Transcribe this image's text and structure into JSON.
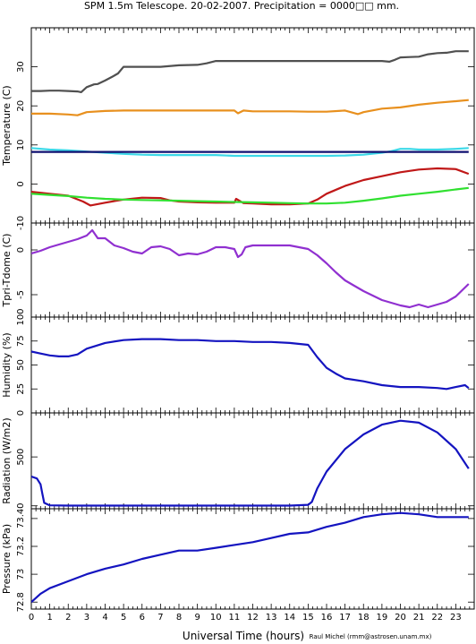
{
  "title": "SPM 1.5m Telescope. 20-02-2007. Precipitation = 0000□□ mm.",
  "credit": "Raul Michel (rmm@astrosen.unam.mx)",
  "colors": {
    "grey": "#505050",
    "orange": "#e8901e",
    "cyan": "#3cd8e8",
    "navy": "#101070",
    "red": "#c01818",
    "green": "#30e030",
    "purple": "#9030d0",
    "blue": "#1414c0"
  },
  "chart_data": [
    {
      "type": "line",
      "ylabel": "Temperature (C)",
      "xlim": [
        0,
        24
      ],
      "ylim": [
        -10,
        40
      ],
      "yticks": [
        -10,
        0,
        10,
        20,
        30
      ],
      "series": [
        {
          "color": "grey",
          "x": [
            0,
            0.5,
            1,
            1.5,
            2,
            2.5,
            2.7,
            3,
            3.4,
            3.6,
            4,
            4.4,
            4.7,
            5,
            5.5,
            6,
            7,
            8,
            9,
            9.5,
            10,
            11,
            12,
            13,
            14,
            15,
            16,
            17,
            18,
            19,
            19.4,
            19.7,
            20,
            20.5,
            21,
            21.5,
            22,
            22.5,
            23,
            23.7
          ],
          "y": [
            23.8,
            23.8,
            23.9,
            23.9,
            23.8,
            23.7,
            23.5,
            24.8,
            25.5,
            25.6,
            26.5,
            27.5,
            28.3,
            30,
            30,
            30,
            30,
            30.4,
            30.5,
            30.9,
            31.5,
            31.5,
            31.5,
            31.5,
            31.5,
            31.5,
            31.5,
            31.5,
            31.5,
            31.5,
            31.3,
            31.8,
            32.4,
            32.5,
            32.6,
            33.2,
            33.5,
            33.6,
            34,
            34
          ]
        },
        {
          "color": "orange",
          "x": [
            0,
            1,
            2,
            2.5,
            3,
            4,
            5,
            6,
            7,
            8,
            9,
            10,
            11,
            11.2,
            11.5,
            12,
            13,
            14,
            15,
            16,
            17,
            17.7,
            18,
            19,
            20,
            21,
            22,
            23,
            23.7
          ],
          "y": [
            18,
            18,
            17.8,
            17.6,
            18.4,
            18.7,
            18.8,
            18.8,
            18.8,
            18.8,
            18.8,
            18.8,
            18.8,
            18.1,
            18.8,
            18.6,
            18.6,
            18.6,
            18.5,
            18.5,
            18.8,
            17.9,
            18.4,
            19.3,
            19.6,
            20.3,
            20.8,
            21.2,
            21.5
          ]
        },
        {
          "color": "cyan",
          "x": [
            0,
            1,
            2,
            3,
            4,
            5,
            6,
            7,
            8,
            9,
            10,
            11,
            12,
            13,
            14,
            15,
            16,
            17,
            18,
            19,
            19.5,
            20,
            20.5,
            21,
            22,
            23,
            23.7
          ],
          "y": [
            9.2,
            8.8,
            8.6,
            8.3,
            8.0,
            7.7,
            7.5,
            7.4,
            7.4,
            7.4,
            7.4,
            7.2,
            7.2,
            7.2,
            7.2,
            7.2,
            7.2,
            7.3,
            7.5,
            8.0,
            8.4,
            9.0,
            9.0,
            8.8,
            8.8,
            9.0,
            9.2
          ]
        },
        {
          "color": "navy",
          "x": [
            0,
            23.7
          ],
          "y": [
            8.2,
            8.2
          ]
        },
        {
          "color": "red",
          "x": [
            0,
            1,
            2,
            2.8,
            3.2,
            4,
            5,
            6,
            7,
            7.5,
            8,
            9,
            10,
            11,
            11.1,
            11.5,
            12,
            13,
            14,
            15,
            15.5,
            16,
            17,
            18,
            19,
            20,
            21,
            22,
            23,
            23.7
          ],
          "y": [
            -2,
            -2.5,
            -3,
            -4.5,
            -5.5,
            -4.8,
            -4,
            -3.5,
            -3.6,
            -4.2,
            -4.5,
            -4.7,
            -4.8,
            -4.8,
            -3.8,
            -4.9,
            -5,
            -5.2,
            -5.2,
            -5,
            -4,
            -2.5,
            -0.5,
            1,
            2,
            3,
            3.7,
            4,
            3.8,
            2.6
          ]
        },
        {
          "color": "green",
          "x": [
            0,
            1,
            2,
            3,
            4,
            5,
            6,
            7,
            8,
            9,
            10,
            11,
            12,
            13,
            14,
            15,
            16,
            17,
            18,
            19,
            20,
            21,
            22,
            23,
            23.7
          ],
          "y": [
            -2.5,
            -2.8,
            -3.1,
            -3.5,
            -3.8,
            -4,
            -4.1,
            -4.2,
            -4.3,
            -4.4,
            -4.5,
            -4.6,
            -4.7,
            -4.8,
            -4.9,
            -5,
            -5,
            -4.8,
            -4.3,
            -3.7,
            -3,
            -2.5,
            -2,
            -1.4,
            -1
          ]
        }
      ]
    },
    {
      "type": "line",
      "ylabel": "Tpri-Tdome (C)",
      "xlim": [
        0,
        24
      ],
      "ylim": [
        -7.5,
        3
      ],
      "yticks": [
        -5,
        0
      ],
      "series": [
        {
          "color": "purple",
          "x": [
            0,
            0.5,
            1,
            1.5,
            2,
            2.5,
            3,
            3.3,
            3.6,
            4,
            4.5,
            5,
            5.5,
            6,
            6.5,
            7,
            7.5,
            8,
            8.5,
            9,
            9.5,
            10,
            10.5,
            11,
            11.2,
            11.4,
            11.6,
            12,
            13,
            14,
            15,
            15.5,
            16,
            16.5,
            17,
            17.5,
            18,
            18.5,
            19,
            19.5,
            20,
            20.5,
            21,
            21.5,
            22,
            22.5,
            23,
            23.7
          ],
          "y": [
            -0.4,
            -0.1,
            0.3,
            0.6,
            0.9,
            1.2,
            1.6,
            2.2,
            1.3,
            1.3,
            0.5,
            0.2,
            -0.2,
            -0.4,
            0.3,
            0.4,
            0.1,
            -0.6,
            -0.4,
            -0.5,
            -0.2,
            0.3,
            0.3,
            0.1,
            -0.8,
            -0.5,
            0.3,
            0.5,
            0.5,
            0.5,
            0.1,
            -0.6,
            -1.5,
            -2.5,
            -3.4,
            -4,
            -4.6,
            -5.1,
            -5.6,
            -5.9,
            -6.2,
            -6.4,
            -6.1,
            -6.4,
            -6.1,
            -5.8,
            -5.2,
            -3.8
          ]
        }
      ]
    },
    {
      "type": "line",
      "ylabel": "Humidity (%)",
      "xlim": [
        0,
        24
      ],
      "ylim": [
        0,
        100
      ],
      "yticks": [
        0,
        25,
        50,
        75,
        100
      ],
      "series": [
        {
          "color": "blue",
          "x": [
            0,
            0.5,
            1,
            1.5,
            2,
            2.5,
            3,
            4,
            5,
            6,
            7,
            8,
            9,
            10,
            11,
            12,
            13,
            14,
            15,
            15.5,
            16,
            16.5,
            17,
            18,
            19,
            20,
            21,
            22,
            22.5,
            23,
            23.5,
            23.7
          ],
          "y": [
            64,
            62,
            60,
            59,
            59,
            61,
            67,
            73,
            76,
            77,
            77,
            76,
            76,
            75,
            75,
            74,
            74,
            73,
            71,
            58,
            47,
            41,
            36,
            33,
            29,
            27,
            27,
            26,
            25,
            27,
            29,
            26
          ]
        }
      ]
    },
    {
      "type": "line",
      "ylabel": "Radiation (W/m2)",
      "xlim": [
        0,
        24
      ],
      "ylim": [
        -30,
        950
      ],
      "yticks": [
        0,
        500
      ],
      "series": [
        {
          "color": "blue",
          "x": [
            0,
            0.3,
            0.5,
            0.6,
            0.7,
            1,
            2,
            3,
            4,
            5,
            6,
            7,
            8,
            9,
            10,
            11,
            12,
            13,
            14,
            15,
            15.2,
            15.5,
            16,
            17,
            18,
            19,
            20,
            21,
            22,
            23,
            23.7
          ],
          "y": [
            300,
            280,
            220,
            120,
            30,
            5,
            2,
            2,
            2,
            2,
            2,
            2,
            2,
            2,
            2,
            2,
            2,
            2,
            2,
            10,
            40,
            180,
            350,
            580,
            730,
            830,
            870,
            850,
            750,
            580,
            380
          ]
        }
      ]
    },
    {
      "type": "line",
      "ylabel": "Pressure (kPa)",
      "xlim": [
        0,
        24
      ],
      "ylim": [
        72.75,
        73.47
      ],
      "ytick_labels": [
        "72.8",
        "73",
        "73.2",
        "73.4"
      ],
      "yticks": [
        72.8,
        73.0,
        73.2,
        73.4
      ],
      "series": [
        {
          "color": "blue",
          "x": [
            0,
            0.5,
            1,
            2,
            3,
            4,
            5,
            6,
            7,
            8,
            9,
            10,
            11,
            12,
            13,
            14,
            15,
            16,
            17,
            18,
            19,
            20,
            21,
            22,
            23,
            23.7
          ],
          "y": [
            72.8,
            72.86,
            72.9,
            72.95,
            73.0,
            73.04,
            73.07,
            73.11,
            73.14,
            73.17,
            73.17,
            73.19,
            73.21,
            73.23,
            73.26,
            73.29,
            73.3,
            73.34,
            73.37,
            73.41,
            73.43,
            73.44,
            73.43,
            73.41,
            73.41,
            73.41
          ]
        }
      ]
    }
  ],
  "xaxis": {
    "label": "Universal Time (hours)",
    "ticks": [
      "0",
      "1",
      "2",
      "3",
      "4",
      "5",
      "6",
      "7",
      "8",
      "9",
      "10",
      "11",
      "12",
      "13",
      "14",
      "15",
      "16",
      "17",
      "18",
      "19",
      "20",
      "21",
      "22",
      "23"
    ]
  }
}
